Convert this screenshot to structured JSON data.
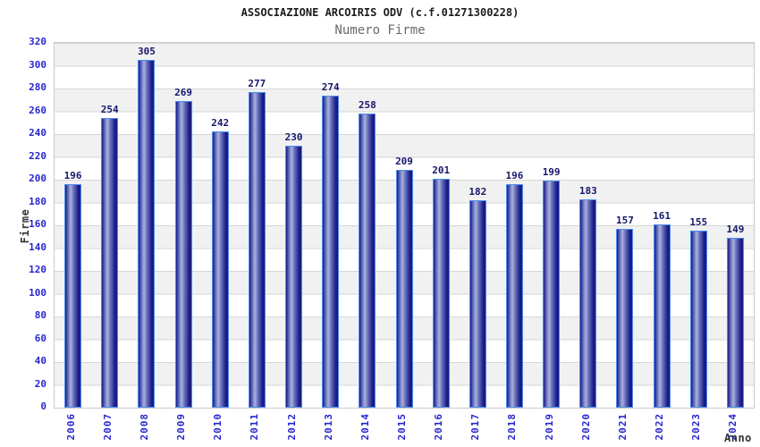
{
  "header": {
    "title": "ASSOCIAZIONE ARCOIRIS ODV (c.f.01271300228)",
    "subtitle": "Numero Firme"
  },
  "chart_data": {
    "type": "bar",
    "title": "ASSOCIAZIONE ARCOIRIS ODV (c.f.01271300228)",
    "subtitle": "Numero Firme",
    "xlabel": "Anno",
    "ylabel": "Firme",
    "categories": [
      "2006",
      "2007",
      "2008",
      "2009",
      "2010",
      "2011",
      "2012",
      "2013",
      "2014",
      "2015",
      "2016",
      "2017",
      "2018",
      "2019",
      "2020",
      "2021",
      "2022",
      "2023",
      "2024"
    ],
    "values": [
      196,
      254,
      305,
      269,
      242,
      277,
      230,
      274,
      258,
      209,
      201,
      182,
      196,
      199,
      183,
      157,
      161,
      155,
      149
    ],
    "ylim": [
      0,
      320
    ],
    "ytick_step": 20,
    "legend": "none",
    "grid": "horizontal-lines-with-alternating-bands",
    "bar_value_labels": true,
    "x_label_rotation_deg": 90
  },
  "colors": {
    "title-color": "#1c1c1c",
    "subtitle-color": "#6a6a6a",
    "axis-label-blue": "#2727cf",
    "value-label-navy": "#16166b",
    "axis-title-color": "#333333",
    "bar-dark": "#1b1b86",
    "bar-mid": "#6a74be",
    "bar-light": "#aab2dc",
    "bar-border": "#4b8df0",
    "band-gray": "#f1f1f1",
    "grid-line": "#d6d6d6",
    "plot-border": "#c9c9c9"
  }
}
